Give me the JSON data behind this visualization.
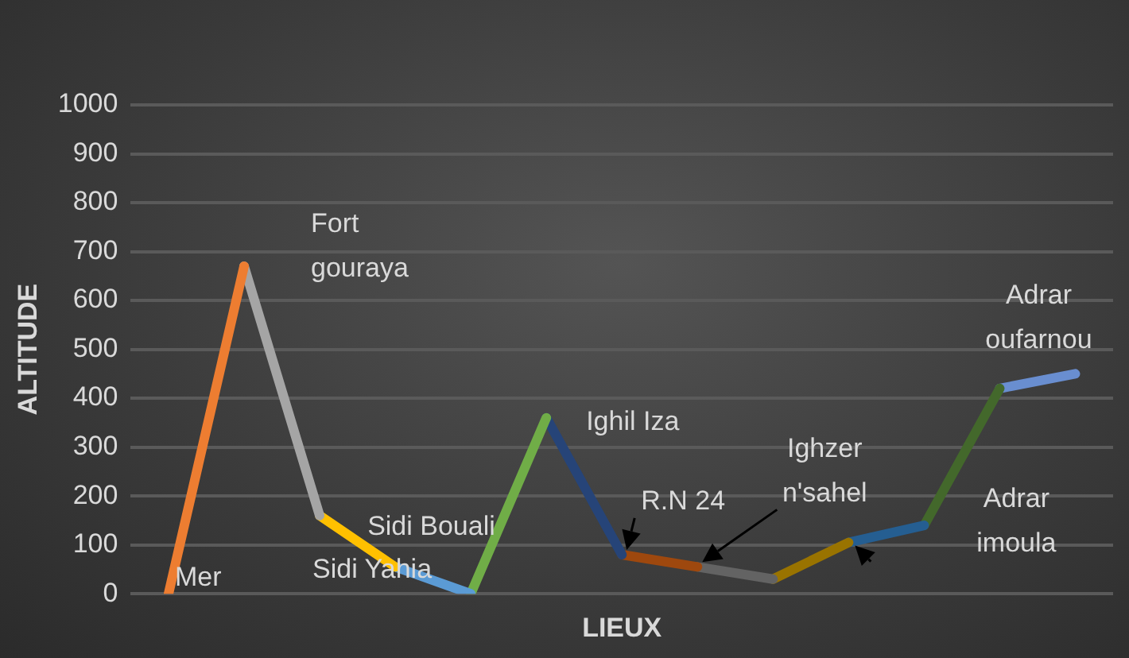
{
  "chart_data": {
    "type": "line",
    "xlabel": "LIEUX",
    "ylabel": "ALTITUDE",
    "categories": [
      null,
      null,
      null,
      null,
      null,
      null,
      null,
      null,
      null,
      null,
      null,
      null,
      null
    ],
    "series": [
      {
        "color": "#ed7d31",
        "values": [
          0,
          670,
          null,
          null,
          null,
          null,
          null,
          null,
          null,
          null,
          null,
          null,
          null
        ]
      },
      {
        "color": "#a5a5a5",
        "values": [
          null,
          670,
          160,
          null,
          null,
          null,
          null,
          null,
          null,
          null,
          null,
          null,
          null
        ]
      },
      {
        "color": "#ffc000",
        "values": [
          null,
          null,
          160,
          55,
          null,
          null,
          null,
          null,
          null,
          null,
          null,
          null,
          null
        ]
      },
      {
        "color": "#5b9bd5",
        "values": [
          null,
          null,
          null,
          55,
          0,
          null,
          null,
          null,
          null,
          null,
          null,
          null,
          null
        ]
      },
      {
        "color": "#70ad47",
        "values": [
          null,
          null,
          null,
          null,
          0,
          360,
          null,
          null,
          null,
          null,
          null,
          null,
          null
        ]
      },
      {
        "color": "#264478",
        "values": [
          null,
          null,
          null,
          null,
          null,
          360,
          80,
          null,
          null,
          null,
          null,
          null,
          null
        ]
      },
      {
        "color": "#9e480e",
        "values": [
          null,
          null,
          null,
          null,
          null,
          null,
          80,
          55,
          null,
          null,
          null,
          null,
          null
        ]
      },
      {
        "color": "#636363",
        "values": [
          null,
          null,
          null,
          null,
          null,
          null,
          null,
          55,
          30,
          null,
          null,
          null,
          null
        ]
      },
      {
        "color": "#997300",
        "values": [
          null,
          null,
          null,
          null,
          null,
          null,
          null,
          null,
          30,
          105,
          null,
          null,
          null
        ]
      },
      {
        "color": "#255e91",
        "values": [
          null,
          null,
          null,
          null,
          null,
          null,
          null,
          null,
          null,
          105,
          140,
          null,
          null
        ]
      },
      {
        "color": "#43682b",
        "values": [
          null,
          null,
          null,
          null,
          null,
          null,
          null,
          null,
          null,
          null,
          140,
          420,
          null
        ]
      },
      {
        "color": "#698ed0",
        "values": [
          null,
          null,
          null,
          null,
          null,
          null,
          null,
          null,
          null,
          null,
          null,
          420,
          450
        ]
      }
    ],
    "annotations": [
      "Mer",
      "Fort gouraya",
      "Sidi Yahia",
      "Sidi Bouali",
      "Ighil Iza",
      "R.N 24",
      "Ighzer n'sahel",
      "Adrar imoula",
      "Adrar oufarnou"
    ],
    "ylim": [
      0,
      1000
    ],
    "yticks": [
      0,
      100,
      200,
      300,
      400,
      500,
      600,
      700,
      800,
      900,
      1000
    ],
    "grid": "y",
    "legend": false,
    "marker": "none",
    "tick_labels": "y"
  }
}
